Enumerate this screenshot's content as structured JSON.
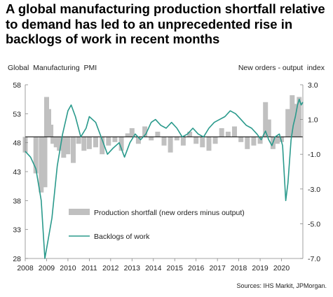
{
  "title": "A global manufacturing production shortfall relative to demand has led to an unprecedented rise in backlogs of work in recent months",
  "source": "Sources: IHS Markit, JPMorgan.",
  "colors": {
    "bars": "#c0c0c0",
    "line": "#2a9a8c",
    "zero": "#000000"
  },
  "chart_data": {
    "type": "bar+line",
    "left_axis": {
      "label": "Global  Manufacturing  PMI",
      "ticks": [
        "58",
        "53",
        "48",
        "43",
        "38",
        "33",
        "28"
      ],
      "range": [
        28,
        58
      ]
    },
    "right_axis": {
      "label": "New orders - output  index",
      "ticks": [
        "3.0",
        "1.0",
        "-1.0",
        "-3.0",
        "-5.0",
        "-7.0"
      ],
      "range": [
        -7.0,
        3.0
      ]
    },
    "x_ticks": [
      "2008",
      "2009",
      "2010",
      "2011",
      "2012",
      "2013",
      "2014",
      "2015",
      "2016",
      "2017",
      "2018",
      "2019",
      "2020"
    ],
    "legend": [
      "Production shortfall (new orders minus output)",
      "Backlogs of work"
    ],
    "grid": false,
    "series": [
      {
        "name": "Production shortfall (new orders minus output)",
        "axis": "right",
        "kind": "bar",
        "points": [
          [
            2008.0,
            -0.9
          ],
          [
            2008.5,
            -2.1
          ],
          [
            2008.75,
            -3.2
          ],
          [
            2008.92,
            -2.9
          ],
          [
            2009.0,
            2.3
          ],
          [
            2009.1,
            1.6
          ],
          [
            2009.2,
            0.7
          ],
          [
            2009.3,
            -0.4
          ],
          [
            2009.45,
            -0.6
          ],
          [
            2009.6,
            -0.8
          ],
          [
            2009.8,
            -1.2
          ],
          [
            2010.0,
            -1.0
          ],
          [
            2010.25,
            -1.5
          ],
          [
            2010.5,
            -0.4
          ],
          [
            2010.75,
            -0.8
          ],
          [
            2011.0,
            -0.7
          ],
          [
            2011.3,
            -0.6
          ],
          [
            2011.6,
            -1.0
          ],
          [
            2011.9,
            -0.5
          ],
          [
            2012.2,
            -0.3
          ],
          [
            2012.5,
            -0.8
          ],
          [
            2012.8,
            0.2
          ],
          [
            2013.0,
            0.5
          ],
          [
            2013.3,
            -0.4
          ],
          [
            2013.6,
            0.6
          ],
          [
            2013.9,
            -0.2
          ],
          [
            2014.2,
            0.3
          ],
          [
            2014.5,
            -0.5
          ],
          [
            2014.8,
            -0.9
          ],
          [
            2015.1,
            -0.2
          ],
          [
            2015.4,
            -0.5
          ],
          [
            2015.7,
            0.3
          ],
          [
            2016.0,
            -0.4
          ],
          [
            2016.3,
            -0.6
          ],
          [
            2016.6,
            -0.8
          ],
          [
            2016.9,
            -0.4
          ],
          [
            2017.2,
            0.5
          ],
          [
            2017.5,
            0.3
          ],
          [
            2017.8,
            0.6
          ],
          [
            2018.1,
            -0.3
          ],
          [
            2018.4,
            -0.7
          ],
          [
            2018.7,
            -0.5
          ],
          [
            2019.0,
            -0.4
          ],
          [
            2019.25,
            2.0
          ],
          [
            2019.4,
            1.0
          ],
          [
            2019.6,
            -0.7
          ],
          [
            2019.8,
            -0.4
          ],
          [
            2020.0,
            -0.3
          ],
          [
            2020.3,
            1.6
          ],
          [
            2020.5,
            2.4
          ],
          [
            2020.7,
            1.9
          ],
          [
            2020.83,
            2.3
          ]
        ]
      },
      {
        "name": "Backlogs of work",
        "axis": "left",
        "kind": "line",
        "points": [
          [
            2008.0,
            46.5
          ],
          [
            2008.25,
            45.5
          ],
          [
            2008.5,
            43.5
          ],
          [
            2008.75,
            38.0
          ],
          [
            2008.92,
            28.0
          ],
          [
            2009.25,
            35.0
          ],
          [
            2009.5,
            44.0
          ],
          [
            2009.75,
            49.5
          ],
          [
            2010.0,
            53.5
          ],
          [
            2010.15,
            54.5
          ],
          [
            2010.35,
            52.5
          ],
          [
            2010.6,
            49.0
          ],
          [
            2010.85,
            50.5
          ],
          [
            2011.0,
            52.5
          ],
          [
            2011.3,
            51.5
          ],
          [
            2011.6,
            48.5
          ],
          [
            2011.85,
            46.0
          ],
          [
            2012.1,
            47.0
          ],
          [
            2012.4,
            48.0
          ],
          [
            2012.65,
            45.5
          ],
          [
            2012.9,
            48.0
          ],
          [
            2013.15,
            49.5
          ],
          [
            2013.4,
            48.5
          ],
          [
            2013.65,
            49.5
          ],
          [
            2013.9,
            51.5
          ],
          [
            2014.1,
            52.0
          ],
          [
            2014.35,
            51.0
          ],
          [
            2014.6,
            50.5
          ],
          [
            2014.85,
            51.5
          ],
          [
            2015.1,
            50.5
          ],
          [
            2015.35,
            49.0
          ],
          [
            2015.6,
            49.5
          ],
          [
            2015.85,
            50.5
          ],
          [
            2016.1,
            49.5
          ],
          [
            2016.35,
            49.0
          ],
          [
            2016.6,
            50.5
          ],
          [
            2016.85,
            51.5
          ],
          [
            2017.1,
            52.0
          ],
          [
            2017.35,
            52.5
          ],
          [
            2017.6,
            53.5
          ],
          [
            2017.85,
            53.0
          ],
          [
            2018.1,
            52.0
          ],
          [
            2018.35,
            51.0
          ],
          [
            2018.6,
            50.5
          ],
          [
            2018.85,
            49.5
          ],
          [
            2019.05,
            48.5
          ],
          [
            2019.25,
            50.0
          ],
          [
            2019.4,
            48.5
          ],
          [
            2019.55,
            47.5
          ],
          [
            2019.7,
            49.0
          ],
          [
            2019.9,
            49.5
          ],
          [
            2020.05,
            47.5
          ],
          [
            2020.2,
            38.0
          ],
          [
            2020.3,
            41.0
          ],
          [
            2020.45,
            48.5
          ],
          [
            2020.55,
            51.0
          ],
          [
            2020.65,
            52.5
          ],
          [
            2020.75,
            54.5
          ],
          [
            2020.83,
            55.5
          ],
          [
            2020.92,
            54.5
          ],
          [
            2021.0,
            55.0
          ]
        ]
      }
    ]
  }
}
